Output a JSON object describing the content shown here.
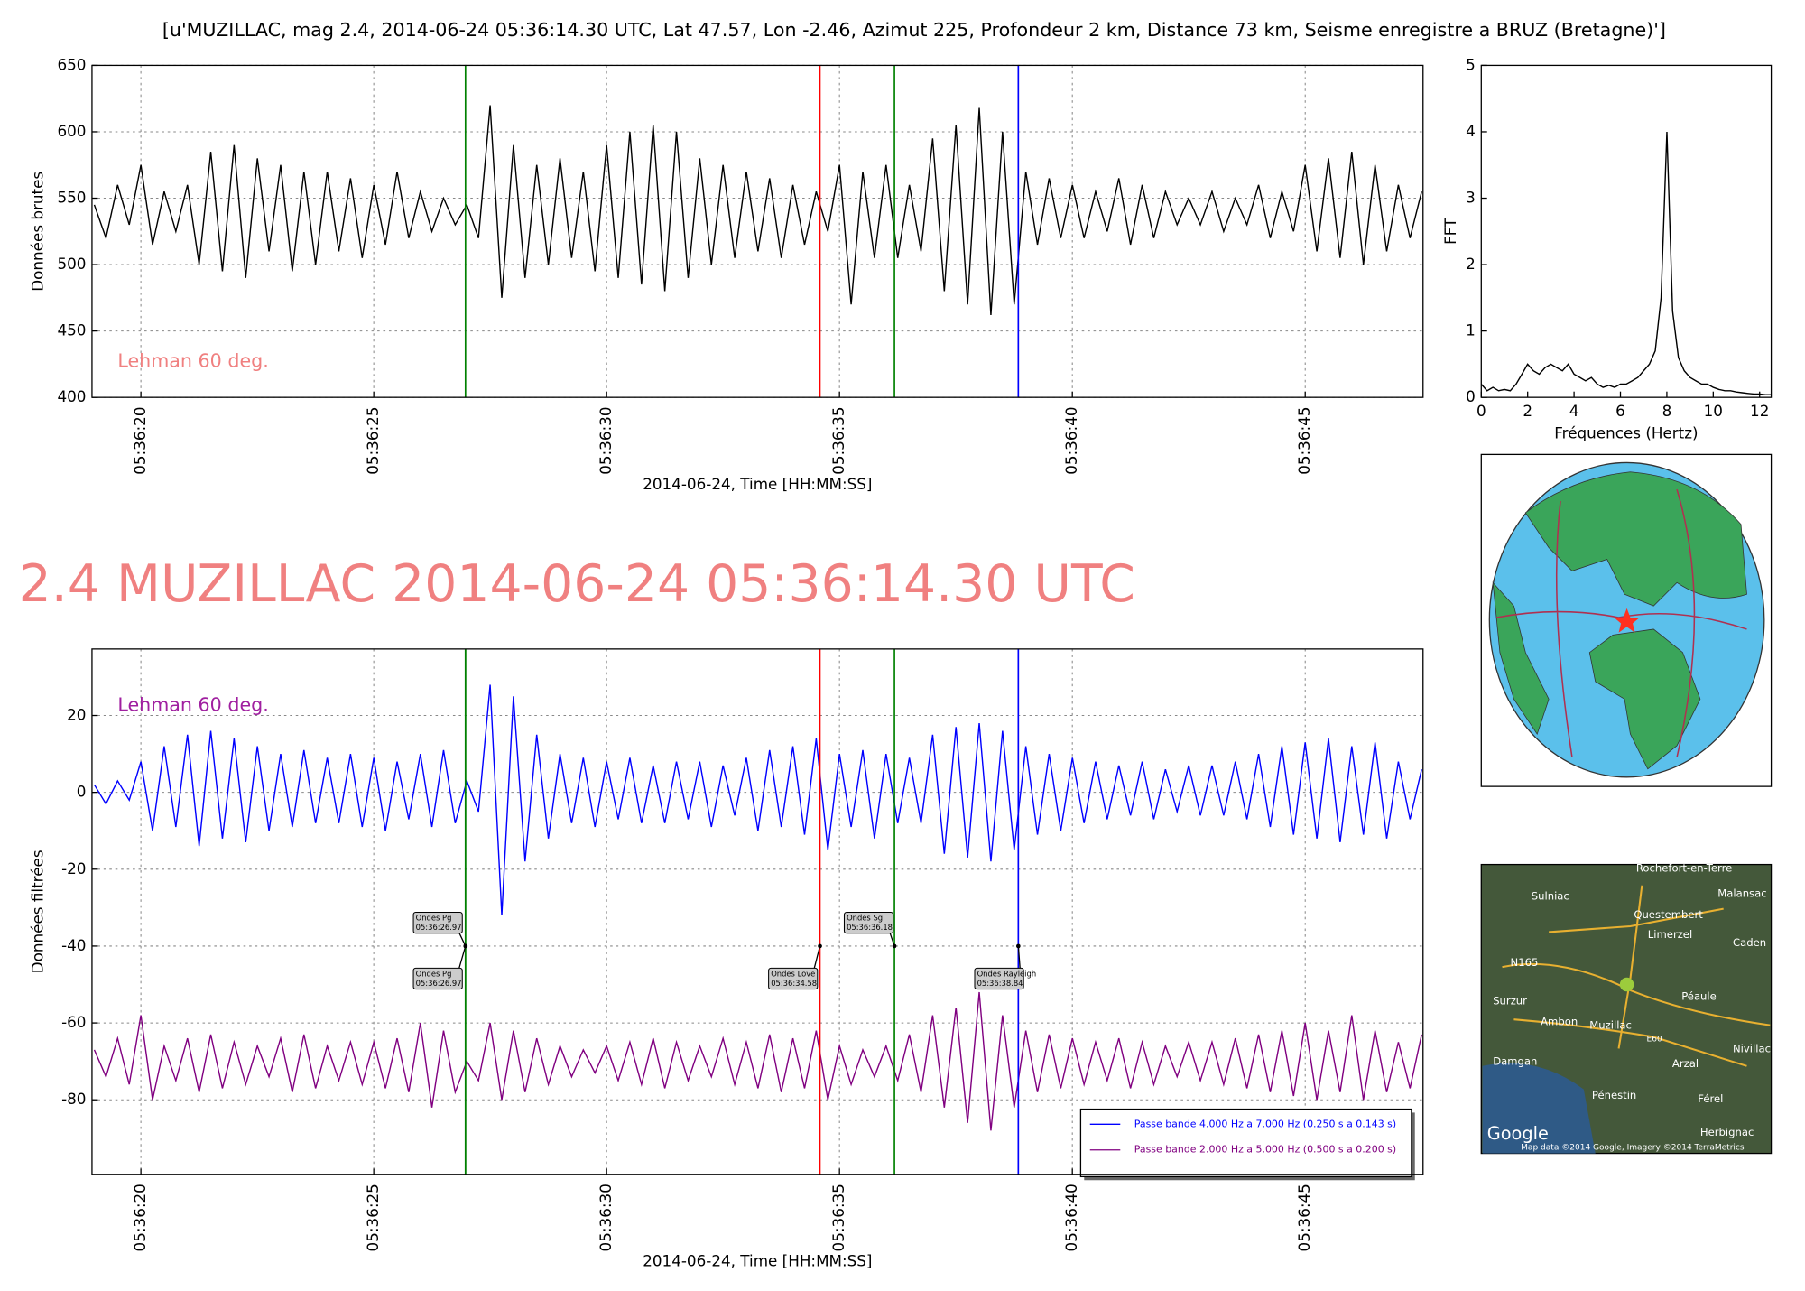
{
  "title": "[u'MUZILLAC, mag 2.4, 2014-06-24 05:36:14.30 UTC, Lat 47.57, Lon -2.46, Azimut 225, Profondeur 2 km, Distance 73 km, Seisme enregistre a BRUZ (Bretagne)']",
  "headline": "2.4 MUZILLAC 2014-06-24 05:36:14.30 UTC",
  "chart_data": [
    {
      "type": "line",
      "ylabel": "Données brutes",
      "xlabel": "2014-06-24, Time [HH:MM:SS]",
      "grid": true,
      "note": {
        "text": "Lehman 60 deg.",
        "color": "#f08080"
      },
      "xlim": [
        18.95,
        47.53
      ],
      "ylim": [
        400,
        650
      ],
      "xticks": [
        {
          "value": 20,
          "label": "05:36:20"
        },
        {
          "value": 25,
          "label": "05:36:25"
        },
        {
          "value": 30,
          "label": "05:36:30"
        },
        {
          "value": 35,
          "label": "05:36:35"
        },
        {
          "value": 40,
          "label": "05:36:40"
        },
        {
          "value": 45,
          "label": "05:36:45"
        }
      ],
      "yticks": [
        400,
        450,
        500,
        550,
        600,
        650
      ],
      "vlines": [
        {
          "x": 26.97,
          "color": "#008000"
        },
        {
          "x": 34.58,
          "color": "#ff0000"
        },
        {
          "x": 36.18,
          "color": "#008000"
        },
        {
          "x": 38.84,
          "color": "#0000ff"
        }
      ],
      "x": [
        19,
        19.25,
        19.5,
        19.75,
        20,
        20.25,
        20.5,
        20.75,
        21,
        21.25,
        21.5,
        21.75,
        22,
        22.25,
        22.5,
        22.75,
        23,
        23.25,
        23.5,
        23.75,
        24,
        24.25,
        24.5,
        24.75,
        25,
        25.25,
        25.5,
        25.75,
        26,
        26.25,
        26.5,
        26.75,
        27,
        27.25,
        27.5,
        27.75,
        28,
        28.25,
        28.5,
        28.75,
        29,
        29.25,
        29.5,
        29.75,
        30,
        30.25,
        30.5,
        30.75,
        31,
        31.25,
        31.5,
        31.75,
        32,
        32.25,
        32.5,
        32.75,
        33,
        33.25,
        33.5,
        33.75,
        34,
        34.25,
        34.5,
        34.75,
        35,
        35.25,
        35.5,
        35.75,
        36,
        36.25,
        36.5,
        36.75,
        37,
        37.25,
        37.5,
        37.75,
        38,
        38.25,
        38.5,
        38.75,
        39,
        39.25,
        39.5,
        39.75,
        40,
        40.25,
        40.5,
        40.75,
        41,
        41.25,
        41.5,
        41.75,
        42,
        42.25,
        42.5,
        42.75,
        43,
        43.25,
        43.5,
        43.75,
        44,
        44.25,
        44.5,
        44.75,
        45,
        45.25,
        45.5,
        45.75,
        46,
        46.25,
        46.5,
        46.75,
        47,
        47.25,
        47.5
      ],
      "color": "#000000",
      "values": [
        545,
        520,
        560,
        530,
        575,
        515,
        555,
        525,
        560,
        500,
        585,
        495,
        590,
        490,
        580,
        510,
        575,
        495,
        570,
        500,
        570,
        510,
        565,
        505,
        560,
        515,
        570,
        520,
        555,
        525,
        550,
        530,
        545,
        520,
        620,
        475,
        590,
        490,
        575,
        500,
        580,
        505,
        570,
        495,
        590,
        490,
        600,
        485,
        605,
        480,
        600,
        490,
        580,
        500,
        575,
        505,
        570,
        510,
        565,
        505,
        560,
        515,
        555,
        525,
        575,
        470,
        570,
        505,
        575,
        505,
        560,
        510,
        595,
        480,
        605,
        470,
        618,
        462,
        600,
        470,
        570,
        515,
        565,
        520,
        560,
        520,
        555,
        525,
        565,
        515,
        560,
        520,
        555,
        530,
        550,
        530,
        555,
        525,
        550,
        530,
        560,
        520,
        555,
        525,
        575,
        510,
        580,
        505,
        585,
        500,
        575,
        510,
        560,
        520,
        555
      ]
    },
    {
      "type": "line",
      "ylabel": "FFT",
      "xlabel": "Fréquences (Hertz)",
      "grid": false,
      "xlim": [
        0,
        12.5
      ],
      "ylim": [
        0,
        5
      ],
      "xticks": [
        0,
        2,
        4,
        6,
        8,
        10,
        12
      ],
      "yticks": [
        0,
        1,
        2,
        3,
        4,
        5
      ],
      "x": [
        0,
        0.25,
        0.5,
        0.75,
        1,
        1.25,
        1.5,
        1.75,
        2,
        2.25,
        2.5,
        2.75,
        3,
        3.25,
        3.5,
        3.75,
        4,
        4.25,
        4.5,
        4.75,
        5,
        5.25,
        5.5,
        5.75,
        6,
        6.25,
        6.5,
        6.75,
        7,
        7.25,
        7.5,
        7.75,
        8,
        8.25,
        8.5,
        8.75,
        9,
        9.25,
        9.5,
        9.75,
        10,
        10.25,
        10.5,
        10.75,
        11,
        11.25,
        11.5,
        11.75,
        12,
        12.25,
        12.5
      ],
      "color": "#000000",
      "values": [
        0.2,
        0.1,
        0.15,
        0.1,
        0.12,
        0.1,
        0.2,
        0.35,
        0.5,
        0.4,
        0.35,
        0.45,
        0.5,
        0.45,
        0.4,
        0.5,
        0.35,
        0.3,
        0.25,
        0.3,
        0.2,
        0.15,
        0.18,
        0.15,
        0.2,
        0.2,
        0.25,
        0.3,
        0.4,
        0.5,
        0.7,
        1.5,
        4.0,
        1.3,
        0.6,
        0.4,
        0.3,
        0.25,
        0.2,
        0.2,
        0.15,
        0.12,
        0.1,
        0.1,
        0.08,
        0.07,
        0.06,
        0.05,
        0.05,
        0.04,
        0.04
      ]
    },
    {
      "type": "line",
      "ylabel": "Données filtrées",
      "xlabel": "2014-06-24, Time [HH:MM:SS]",
      "grid": true,
      "legend": "lower right",
      "note": {
        "text": "Lehman 60 deg.",
        "color": "#a020a0"
      },
      "xlim": [
        18.95,
        47.53
      ],
      "ylim": [
        -99.4,
        37.3
      ],
      "xticks": [
        {
          "value": 20,
          "label": "05:36:20"
        },
        {
          "value": 25,
          "label": "05:36:25"
        },
        {
          "value": 30,
          "label": "05:36:30"
        },
        {
          "value": 35,
          "label": "05:36:35"
        },
        {
          "value": 40,
          "label": "05:36:40"
        },
        {
          "value": 45,
          "label": "05:36:45"
        }
      ],
      "yticks": [
        -80,
        -60,
        -40,
        -20,
        0,
        20
      ],
      "annotations": [
        {
          "text": [
            "Ondes Pg",
            "05:36:26.97"
          ],
          "x": 26.97,
          "y": -40,
          "color": "#008000"
        },
        {
          "text": [
            "Ondes Pg",
            "05:36:26.97"
          ],
          "x": 26.97,
          "y": -40,
          "color": "#008000"
        },
        {
          "text": [
            "Ondes Love",
            "05:36:34.58"
          ],
          "x": 34.58,
          "y": -40,
          "color": "#ff0000"
        },
        {
          "text": [
            "Ondes Sg",
            "05:36:36.18"
          ],
          "x": 36.18,
          "y": -40,
          "color": "#008000"
        },
        {
          "text": [
            "Ondes Rayleigh",
            "05:36:38.84"
          ],
          "x": 38.84,
          "y": -40,
          "color": "#0000ff"
        }
      ],
      "x": [
        19,
        19.25,
        19.5,
        19.75,
        20,
        20.25,
        20.5,
        20.75,
        21,
        21.25,
        21.5,
        21.75,
        22,
        22.25,
        22.5,
        22.75,
        23,
        23.25,
        23.5,
        23.75,
        24,
        24.25,
        24.5,
        24.75,
        25,
        25.25,
        25.5,
        25.75,
        26,
        26.25,
        26.5,
        26.75,
        27,
        27.25,
        27.5,
        27.75,
        28,
        28.25,
        28.5,
        28.75,
        29,
        29.25,
        29.5,
        29.75,
        30,
        30.25,
        30.5,
        30.75,
        31,
        31.25,
        31.5,
        31.75,
        32,
        32.25,
        32.5,
        32.75,
        33,
        33.25,
        33.5,
        33.75,
        34,
        34.25,
        34.5,
        34.75,
        35,
        35.25,
        35.5,
        35.75,
        36,
        36.25,
        36.5,
        36.75,
        37,
        37.25,
        37.5,
        37.75,
        38,
        38.25,
        38.5,
        38.75,
        39,
        39.25,
        39.5,
        39.75,
        40,
        40.25,
        40.5,
        40.75,
        41,
        41.25,
        41.5,
        41.75,
        42,
        42.25,
        42.5,
        42.75,
        43,
        43.25,
        43.5,
        43.75,
        44,
        44.25,
        44.5,
        44.75,
        45,
        45.25,
        45.5,
        45.75,
        46,
        46.25,
        46.5,
        46.75,
        47,
        47.25,
        47.5
      ],
      "series": [
        {
          "name": "Passe bande 4.000 Hz a 7.000 Hz (0.250 s a 0.143 s)",
          "color": "#0000ff",
          "values": [
            2,
            -3,
            3,
            -2,
            8,
            -10,
            12,
            -9,
            15,
            -14,
            16,
            -12,
            14,
            -13,
            12,
            -10,
            10,
            -9,
            11,
            -8,
            9,
            -8,
            10,
            -9,
            9,
            -10,
            8,
            -7,
            10,
            -9,
            11,
            -8,
            3,
            -5,
            28,
            -32,
            25,
            -18,
            15,
            -12,
            10,
            -8,
            9,
            -9,
            8,
            -7,
            9,
            -8,
            7,
            -8,
            8,
            -7,
            8,
            -9,
            7,
            -6,
            9,
            -10,
            11,
            -9,
            12,
            -11,
            14,
            -15,
            10,
            -9,
            11,
            -12,
            10,
            -8,
            9,
            -8,
            15,
            -16,
            17,
            -17,
            18,
            -18,
            16,
            -15,
            12,
            -11,
            10,
            -10,
            9,
            -8,
            8,
            -7,
            7,
            -6,
            8,
            -7,
            6,
            -5,
            7,
            -6,
            7,
            -6,
            8,
            -7,
            10,
            -9,
            12,
            -11,
            13,
            -12,
            14,
            -13,
            12,
            -11,
            13,
            -12,
            8,
            -7,
            6
          ]
        },
        {
          "name": "Passe bande 2.000 Hz a 5.000 Hz (0.500 s a 0.200 s)",
          "color": "#800080",
          "values": [
            -67,
            -74,
            -64,
            -76,
            -58,
            -80,
            -66,
            -75,
            -64,
            -78,
            -63,
            -77,
            -65,
            -76,
            -66,
            -74,
            -64,
            -78,
            -63,
            -77,
            -66,
            -75,
            -65,
            -76,
            -65,
            -77,
            -64,
            -78,
            -60,
            -82,
            -62,
            -78,
            -70,
            -75,
            -60,
            -80,
            -62,
            -78,
            -64,
            -76,
            -66,
            -74,
            -67,
            -73,
            -66,
            -75,
            -65,
            -76,
            -64,
            -77,
            -65,
            -75,
            -66,
            -74,
            -64,
            -76,
            -65,
            -77,
            -63,
            -78,
            -64,
            -77,
            -62,
            -80,
            -66,
            -76,
            -67,
            -74,
            -66,
            -75,
            -63,
            -78,
            -58,
            -82,
            -56,
            -86,
            -52,
            -88,
            -58,
            -82,
            -62,
            -78,
            -63,
            -77,
            -64,
            -76,
            -65,
            -75,
            -64,
            -77,
            -65,
            -76,
            -66,
            -74,
            -65,
            -75,
            -65,
            -76,
            -64,
            -77,
            -63,
            -78,
            -62,
            -79,
            -60,
            -80,
            -62,
            -78,
            -58,
            -80,
            -62,
            -78,
            -65,
            -77,
            -63
          ]
        }
      ]
    }
  ],
  "map": {
    "labels": [
      "Rochefort-en-Terre",
      "Malansac",
      "Sulniac",
      "Questembert",
      "Limerzel",
      "Caden",
      "N165",
      "Surzur",
      "Ambon",
      "Muzillac",
      "Péaule",
      "Damgan",
      "Arzal",
      "Nivillac",
      "Pénestin",
      "Férel",
      "Herbignac",
      "E60",
      "Google",
      "Map data ©2014 Google, Imagery ©2014 TerraMetrics"
    ]
  }
}
